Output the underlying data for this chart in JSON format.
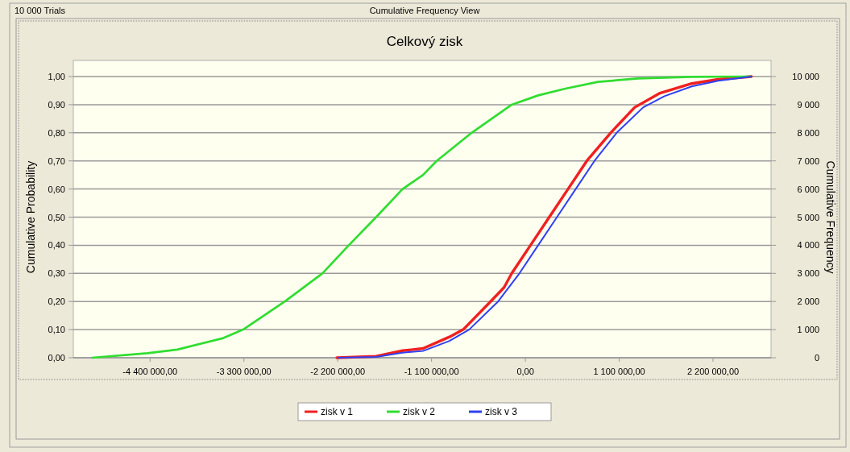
{
  "chart_data": {
    "type": "line",
    "title": "Celkový zisk",
    "annotations": [
      "10 000 Trials",
      "Cumulative Frequency View"
    ],
    "ylabel": "Cumulative Probability",
    "y2label": "Cumulative Frequency",
    "xlim": [
      -5300000,
      2880000
    ],
    "xticks": [
      {
        "value": -4400000,
        "label": "-4 400 000,00"
      },
      {
        "value": -3300000,
        "label": "-3 300 000,00"
      },
      {
        "value": -2200000,
        "label": "-2 200 000,00"
      },
      {
        "value": -1100000,
        "label": "-1 100 000,00"
      },
      {
        "value": 0,
        "label": "0,00"
      },
      {
        "value": 1100000,
        "label": "1 100 000,00"
      },
      {
        "value": 2200000,
        "label": "2 200 000,00"
      }
    ],
    "ylim": [
      0,
      1
    ],
    "yticks": [
      {
        "value": 0,
        "label": "0,00"
      },
      {
        "value": 0.1,
        "label": "0,10"
      },
      {
        "value": 0.2,
        "label": "0,20"
      },
      {
        "value": 0.3,
        "label": "0,30"
      },
      {
        "value": 0.4,
        "label": "0,40"
      },
      {
        "value": 0.5,
        "label": "0,50"
      },
      {
        "value": 0.6,
        "label": "0,60"
      },
      {
        "value": 0.7,
        "label": "0,70"
      },
      {
        "value": 0.8,
        "label": "0,80"
      },
      {
        "value": 0.9,
        "label": "0,90"
      },
      {
        "value": 1,
        "label": "1,00"
      }
    ],
    "y2lim": [
      0,
      10000
    ],
    "y2ticks": [
      0,
      {
        "value": 1000,
        "label": "1 000"
      },
      {
        "value": 2000,
        "label": "2 000"
      },
      {
        "value": 3000,
        "label": "3 000"
      },
      {
        "value": 4000,
        "label": "4 000"
      },
      {
        "value": 5000,
        "label": "5 000"
      },
      {
        "value": 6000,
        "label": "6 000"
      },
      {
        "value": 7000,
        "label": "7 000"
      },
      {
        "value": 8000,
        "label": "8 000"
      },
      {
        "value": 9000,
        "label": "9 000"
      },
      {
        "value": 10000,
        "label": "10 000"
      }
    ],
    "grid": "y",
    "legend": "bottom",
    "marker": "none",
    "line_style": "solid",
    "series": [
      {
        "name": "zisk v 1",
        "color": "#f02020",
        "x": [
          -2210000,
          -1750000,
          -1440000,
          -1200000,
          -890000,
          -730000,
          -440000,
          -250000,
          -160000,
          60000,
          280000,
          500000,
          720000,
          1000000,
          1280000,
          1570000,
          1950000,
          2260000,
          2650000
        ],
        "values": [
          0,
          0.005,
          0.025,
          0.033,
          0.074,
          0.1,
          0.19,
          0.25,
          0.3,
          0.4,
          0.5,
          0.6,
          0.7,
          0.8,
          0.89,
          0.94,
          0.975,
          0.99,
          1
        ]
      },
      {
        "name": "zisk v 2",
        "color": "#30dd30",
        "x": [
          -5080000,
          -4430000,
          -4080000,
          -3540000,
          -3310000,
          -2820000,
          -2380000,
          -2070000,
          -1750000,
          -1440000,
          -1200000,
          -1040000,
          -630000,
          -160000,
          150000,
          470000,
          850000,
          1320000,
          1950000,
          2640000
        ],
        "values": [
          0,
          0.016,
          0.029,
          0.07,
          0.1,
          0.2,
          0.3,
          0.4,
          0.5,
          0.6,
          0.65,
          0.7,
          0.8,
          0.9,
          0.933,
          0.957,
          0.981,
          0.993,
          0.999,
          1
        ]
      },
      {
        "name": "zisk v 3",
        "color": "#3040f0",
        "x": [
          -2190000,
          -1750000,
          -1440000,
          -1200000,
          -890000,
          -660000,
          -320000,
          -70000,
          150000,
          370000,
          590000,
          810000,
          1070000,
          1380000,
          1630000,
          1950000,
          2260000,
          2650000
        ],
        "values": [
          0,
          0.003,
          0.018,
          0.024,
          0.06,
          0.1,
          0.2,
          0.3,
          0.4,
          0.5,
          0.6,
          0.7,
          0.8,
          0.89,
          0.93,
          0.965,
          0.985,
          1
        ]
      }
    ]
  }
}
